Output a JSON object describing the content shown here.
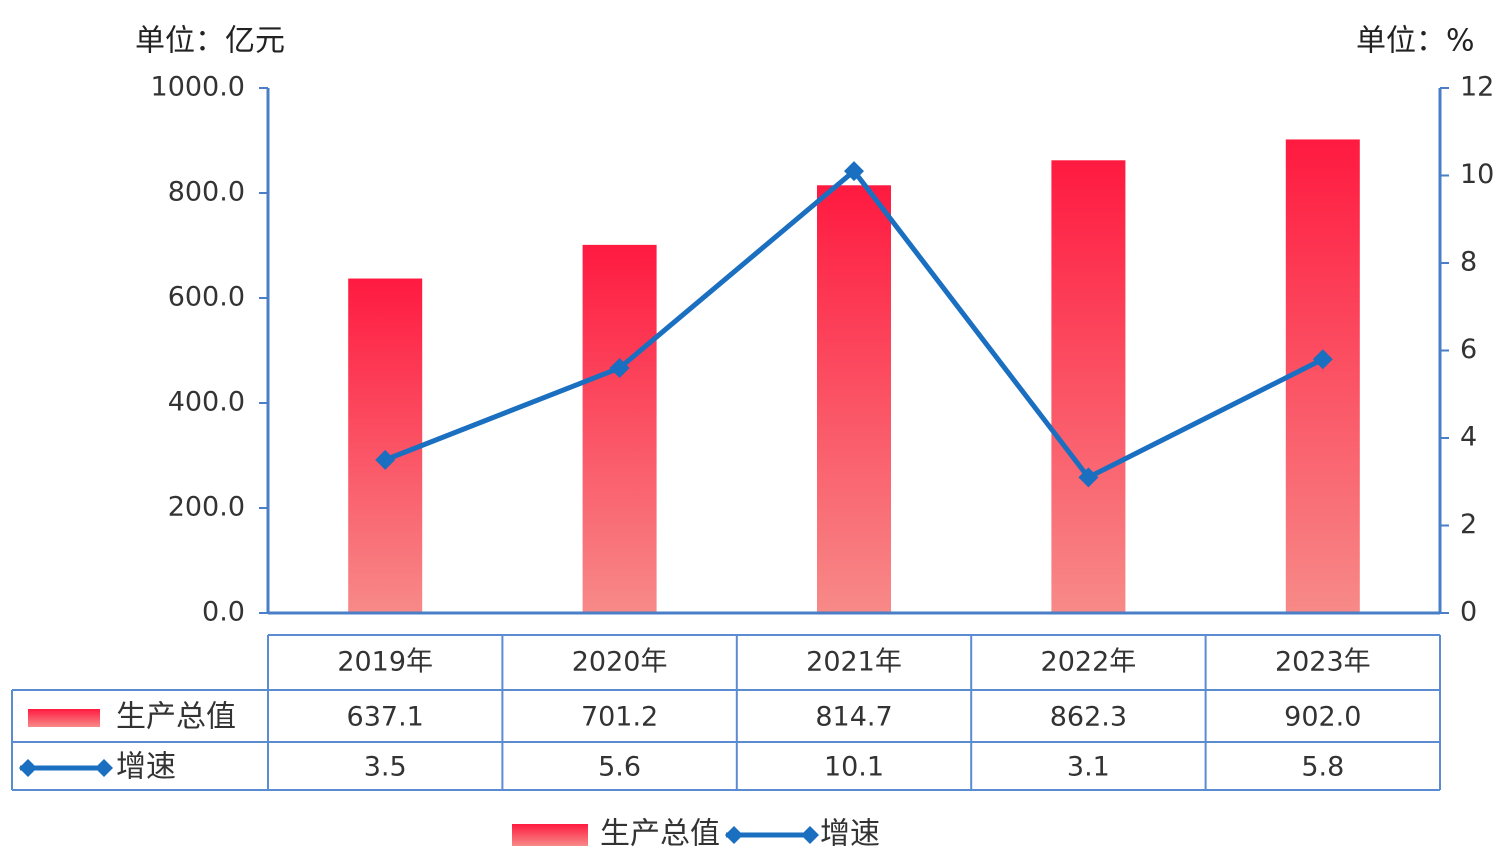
{
  "chart_data": {
    "type": "bar-line",
    "y_label": "单位：亿元",
    "y2_label": "单位：%",
    "categories": [
      "2019年",
      "2020年",
      "2021年",
      "2022年",
      "2023年"
    ],
    "series": [
      {
        "name": "生产总值",
        "type": "bar",
        "color": "#ff1a40",
        "values": [
          637.1,
          701.2,
          814.7,
          862.3,
          902.0
        ],
        "value_labels": [
          "637.1",
          "701.2",
          "814.7",
          "862.3",
          "902.0"
        ]
      },
      {
        "name": "增速",
        "type": "line",
        "axis": "y2",
        "color": "#1a6fc0",
        "values": [
          3.5,
          5.6,
          10.1,
          3.1,
          5.8
        ]
      }
    ],
    "ylim": [
      0,
      1000
    ],
    "yticks": [
      {
        "value": 0,
        "label": "0.0"
      },
      {
        "value": 200,
        "label": "200.0"
      },
      {
        "value": 400,
        "label": "400.0"
      },
      {
        "value": 600,
        "label": "600.0"
      },
      {
        "value": 800,
        "label": "800.0"
      },
      {
        "value": 1000,
        "label": "1000.0"
      }
    ],
    "y2lim": [
      0,
      12
    ],
    "y2ticks": [
      0,
      2,
      4,
      6,
      8,
      10,
      12
    ],
    "data_table": true
  }
}
